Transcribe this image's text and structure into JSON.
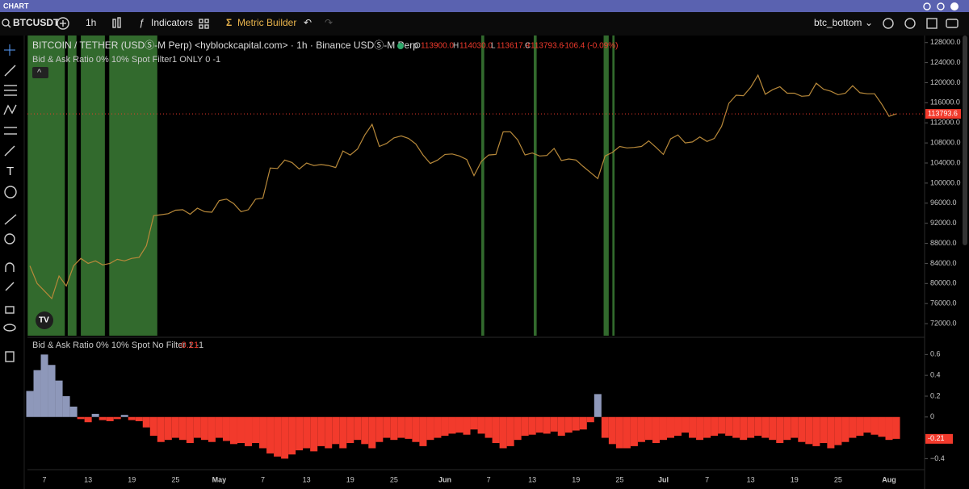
{
  "window": {
    "title": "CHART"
  },
  "toolbar": {
    "symbol": "BTCUSDT",
    "interval": "1h",
    "indicators": "Indicators",
    "metric_builder": "Metric Builder",
    "layout": "btc_bottom"
  },
  "chart_data": [
    {
      "type": "line",
      "title": "BITCOIN / TETHER (USDⓈ-M Perp) <hyblockcapital.com> · 1h · Binance USDⓈ-M Perp",
      "ohlc": {
        "open_label": "O",
        "open": "113900.0",
        "high_label": "H",
        "high": "114030.0",
        "low_label": "L",
        "low": "113617.9",
        "close_label": "C",
        "close": "113793.6",
        "change": "-106.4 (-0.09%)"
      },
      "indicator": "Bid & Ask Ratio 0% 10% Spot Filter1 ONLY 0 -1",
      "color": "#b8893a",
      "highlight_color": "#3b7d35",
      "values": [
        83500,
        80000,
        78500,
        77000,
        81500,
        79500,
        83500,
        85000,
        84000,
        84500,
        83700,
        84000,
        84800,
        84500,
        85000,
        85200,
        87500,
        93500,
        93700,
        93900,
        94600,
        94700,
        93800,
        95000,
        94300,
        94200,
        96500,
        96800,
        95900,
        94300,
        94700,
        96800,
        97000,
        103000,
        102900,
        104600,
        104100,
        102800,
        104000,
        103500,
        103700,
        103500,
        103100,
        106400,
        105600,
        106800,
        109600,
        111700,
        107300,
        107900,
        109000,
        109400,
        108900,
        107800,
        105600,
        103900,
        104600,
        105700,
        105800,
        105400,
        104700,
        101500,
        104300,
        105600,
        105700,
        110200,
        110200,
        108600,
        105600,
        106000,
        105400,
        105500,
        106900,
        104500,
        104800,
        104600,
        103300,
        102100,
        100900,
        105400,
        106100,
        107300,
        107000,
        107100,
        107300,
        108400,
        107100,
        105700,
        108800,
        109600,
        108000,
        108200,
        109200,
        108300,
        108900,
        111300,
        115900,
        117500,
        117400,
        119100,
        121500,
        117700,
        118600,
        119200,
        117900,
        117900,
        117300,
        117400,
        119900,
        118700,
        118300,
        117600,
        117900,
        119400,
        118000,
        117800,
        117800,
        115700,
        113300,
        113793.6
      ],
      "last_value_label": "113793.6",
      "highlight_ranges": [
        [
          -0.3,
          4.8
        ],
        [
          5.2,
          6.4
        ],
        [
          7,
          10.3
        ],
        [
          10.9,
          17.5
        ],
        [
          62,
          62.4
        ],
        [
          69.2,
          69.6
        ],
        [
          78.8,
          79.5
        ],
        [
          80,
          80.3
        ]
      ],
      "ylim": [
        69600,
        129400
      ],
      "yticks": [
        {
          "value": 72000,
          "label": "72000.0"
        },
        {
          "value": 76000,
          "label": "76000.0"
        },
        {
          "value": 80000,
          "label": "80000.0"
        },
        {
          "value": 84000,
          "label": "84000.0"
        },
        {
          "value": 88000,
          "label": "88000.0"
        },
        {
          "value": 92000,
          "label": "92000.0"
        },
        {
          "value": 96000,
          "label": "96000.0"
        },
        {
          "value": 100000,
          "label": "100000.0"
        },
        {
          "value": 104000,
          "label": "104000.0"
        },
        {
          "value": 108000,
          "label": "108000.0"
        },
        {
          "value": 112000,
          "label": "112000.0"
        },
        {
          "value": 116000,
          "label": "116000.0"
        },
        {
          "value": 120000,
          "label": "120000.0"
        },
        {
          "value": 124000,
          "label": "124000.0"
        },
        {
          "value": 128000,
          "label": "128000.0"
        }
      ]
    },
    {
      "type": "bar",
      "title": "Bid & Ask Ratio 0% 10% Spot No Filter 1 -1",
      "last_value_label": "-0.21",
      "positive_color": "#8e98ba",
      "negative_color": "#f23a2c",
      "categories": [
        null,
        null,
        "7",
        null,
        null,
        null,
        null,
        null,
        "13",
        null,
        null,
        null,
        null,
        null,
        "19",
        null,
        null,
        null,
        null,
        null,
        "25",
        null,
        null,
        null,
        null,
        null,
        "May",
        null,
        null,
        null,
        null,
        null,
        "7",
        null,
        null,
        null,
        null,
        null,
        "13",
        null,
        null,
        null,
        null,
        null,
        "19",
        null,
        null,
        null,
        null,
        null,
        "25",
        null,
        null,
        null,
        null,
        null,
        null,
        "Jun",
        null,
        null,
        null,
        null,
        null,
        "7",
        null,
        null,
        null,
        null,
        null,
        "13",
        null,
        null,
        null,
        null,
        null,
        "19",
        null,
        null,
        null,
        null,
        null,
        "25",
        null,
        null,
        null,
        null,
        null,
        "Jul",
        null,
        null,
        null,
        null,
        null,
        "7",
        null,
        null,
        null,
        null,
        null,
        "13",
        null,
        null,
        null,
        null,
        null,
        "19",
        null,
        null,
        null,
        null,
        null,
        "25",
        null,
        null,
        null,
        null,
        null,
        null,
        "Aug",
        null
      ],
      "values": [
        0.25,
        0.45,
        0.6,
        0.5,
        0.35,
        0.2,
        0.1,
        -0.02,
        -0.05,
        0.03,
        -0.03,
        -0.04,
        -0.02,
        0.02,
        -0.03,
        -0.04,
        -0.1,
        -0.18,
        -0.24,
        -0.22,
        -0.2,
        -0.22,
        -0.25,
        -0.2,
        -0.22,
        -0.24,
        -0.2,
        -0.23,
        -0.26,
        -0.25,
        -0.28,
        -0.25,
        -0.3,
        -0.35,
        -0.38,
        -0.4,
        -0.36,
        -0.32,
        -0.3,
        -0.33,
        -0.28,
        -0.3,
        -0.26,
        -0.3,
        -0.25,
        -0.22,
        -0.26,
        -0.3,
        -0.24,
        -0.2,
        -0.22,
        -0.2,
        -0.21,
        -0.24,
        -0.28,
        -0.22,
        -0.2,
        -0.18,
        -0.16,
        -0.15,
        -0.17,
        -0.12,
        -0.16,
        -0.2,
        -0.25,
        -0.3,
        -0.28,
        -0.22,
        -0.18,
        -0.17,
        -0.15,
        -0.16,
        -0.14,
        -0.18,
        -0.15,
        -0.13,
        -0.12,
        -0.05,
        0.22,
        -0.2,
        -0.26,
        -0.3,
        -0.3,
        -0.28,
        -0.24,
        -0.22,
        -0.25,
        -0.22,
        -0.2,
        -0.18,
        -0.15,
        -0.2,
        -0.22,
        -0.2,
        -0.18,
        -0.16,
        -0.18,
        -0.2,
        -0.22,
        -0.2,
        -0.18,
        -0.2,
        -0.22,
        -0.25,
        -0.22,
        -0.2,
        -0.24,
        -0.26,
        -0.28,
        -0.25,
        -0.3,
        -0.27,
        -0.24,
        -0.2,
        -0.18,
        -0.15,
        -0.17,
        -0.19,
        -0.22,
        -0.21
      ],
      "ylim": [
        -0.49,
        0.75
      ],
      "yticks": [
        {
          "value": -0.4,
          "label": "−0.4"
        },
        0,
        0.2,
        0.4,
        0.6
      ]
    }
  ]
}
